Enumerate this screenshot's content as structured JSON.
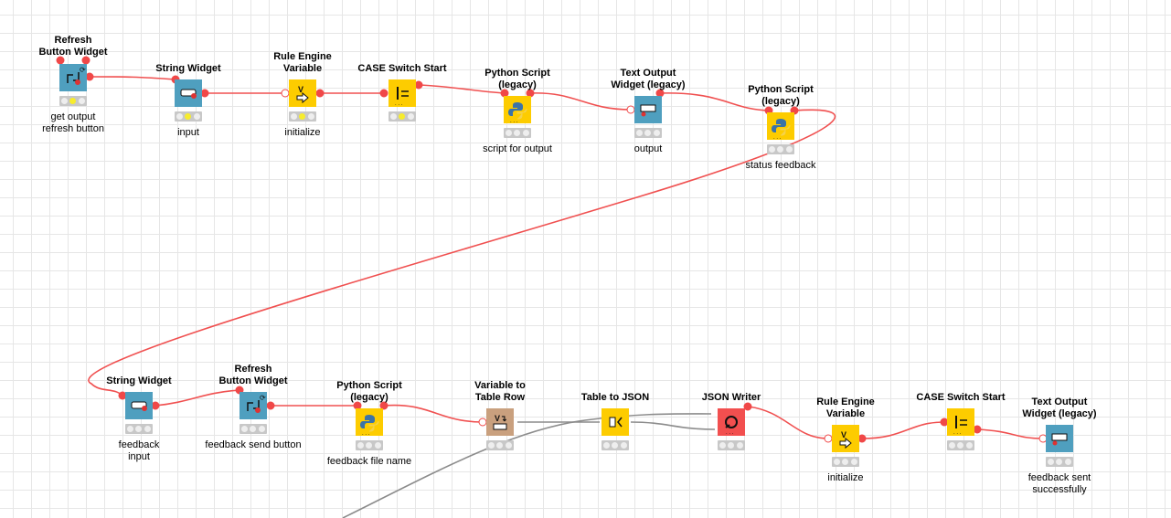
{
  "colors": {
    "widget": "#4f9fbf",
    "manipulator": "#fdcc00",
    "other": "#c9a07e",
    "sink": "#f24f4f",
    "flow": "#f05050",
    "data": "#8c8c8c"
  },
  "nodes": [
    {
      "title": [
        "Refresh",
        "Button Widget"
      ],
      "label": [
        "get output",
        "refresh button"
      ],
      "type": "widget",
      "icon": "refresh-button-icon",
      "status": "yellow"
    },
    {
      "title": [
        "String Widget"
      ],
      "label": [
        "input"
      ],
      "type": "widget",
      "icon": "string-input-icon",
      "status": "yellow"
    },
    {
      "title": [
        "Rule Engine",
        "Variable"
      ],
      "label": [
        "initialize"
      ],
      "type": "manipulator",
      "icon": "rule-engine-icon",
      "status": "yellow"
    },
    {
      "title": [
        "CASE Switch Start"
      ],
      "label": [],
      "type": "manipulator",
      "icon": "switch-icon",
      "status": "yellow"
    },
    {
      "title": [
        "Python Script",
        "(legacy)"
      ],
      "label": [
        "script for output"
      ],
      "type": "manipulator",
      "icon": "python-icon",
      "status": "idle"
    },
    {
      "title": [
        "Text Output",
        "Widget (legacy)"
      ],
      "label": [
        "output"
      ],
      "type": "widget",
      "icon": "text-output-icon",
      "status": "idle"
    },
    {
      "title": [
        "Python Script",
        "(legacy)"
      ],
      "label": [
        "status feedback"
      ],
      "type": "manipulator",
      "icon": "python-icon",
      "status": "idle"
    },
    {
      "title": [
        "String Widget"
      ],
      "label": [
        "feedback",
        "input"
      ],
      "type": "widget",
      "icon": "string-input-icon",
      "status": "idle"
    },
    {
      "title": [
        "Refresh",
        "Button Widget"
      ],
      "label": [
        "feedback send button"
      ],
      "type": "widget",
      "icon": "refresh-button-icon",
      "status": "idle"
    },
    {
      "title": [
        "Python Script",
        "(legacy)"
      ],
      "label": [
        "feedback file name"
      ],
      "type": "manipulator",
      "icon": "python-icon",
      "status": "idle"
    },
    {
      "title": [
        "Variable to",
        "Table Row"
      ],
      "label": [],
      "type": "other",
      "icon": "variable-to-row-icon",
      "status": "idle"
    },
    {
      "title": [
        "Table to JSON"
      ],
      "label": [],
      "type": "manipulator",
      "icon": "table-to-json-icon",
      "status": "idle"
    },
    {
      "title": [
        "JSON Writer"
      ],
      "label": [],
      "type": "sink",
      "icon": "json-writer-icon",
      "status": "idle"
    },
    {
      "title": [
        "Rule Engine",
        "Variable"
      ],
      "label": [
        "initialize"
      ],
      "type": "manipulator",
      "icon": "rule-engine-icon",
      "status": "idle"
    },
    {
      "title": [
        "CASE Switch Start"
      ],
      "label": [],
      "type": "manipulator",
      "icon": "switch-icon",
      "status": "idle"
    },
    {
      "title": [
        "Text Output",
        "Widget (legacy)"
      ],
      "label": [
        "feedback sent successfully"
      ],
      "type": "widget",
      "icon": "text-output-icon",
      "status": "idle"
    }
  ]
}
